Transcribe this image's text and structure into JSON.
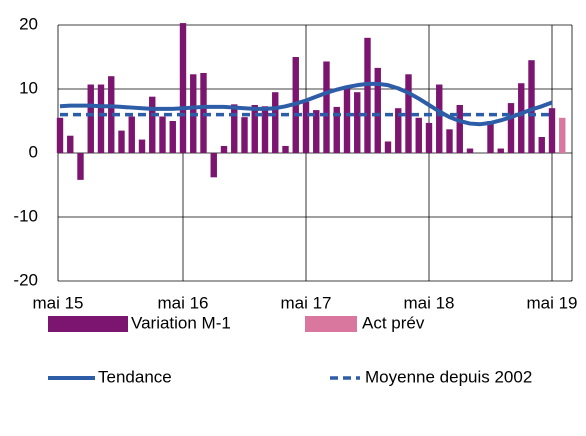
{
  "chart_data": {
    "type": "bar",
    "categories": [
      "mai 15",
      null,
      null,
      null,
      null,
      null,
      null,
      null,
      null,
      null,
      null,
      null,
      "mai 16",
      null,
      null,
      null,
      null,
      null,
      null,
      null,
      null,
      null,
      null,
      null,
      "mai 17",
      null,
      null,
      null,
      null,
      null,
      null,
      null,
      null,
      null,
      null,
      null,
      "mai 18",
      null,
      null,
      null,
      null,
      null,
      null,
      null,
      null,
      null,
      null,
      null,
      "mai 19",
      null
    ],
    "series": [
      {
        "name": "Variation M-1",
        "kind": "bar",
        "color": "#7b1570",
        "values": [
          5.5,
          2.7,
          -4.2,
          10.7,
          10.7,
          12,
          3.5,
          5.7,
          2.1,
          8.8,
          5.7,
          5,
          20.3,
          12.3,
          12.5,
          -3.8,
          1.1,
          7.6,
          5.6,
          7.5,
          7.3,
          9.5,
          1.1,
          15,
          8,
          6.7,
          14.3,
          7.2,
          10.3,
          9.5,
          18,
          13.3,
          1.8,
          7,
          12.3,
          5.5,
          4.7,
          10.7,
          3.7,
          7.5,
          0.7,
          0,
          5,
          0.7,
          7.8,
          10.9,
          14.5,
          2.5,
          7,
          null
        ]
      },
      {
        "name": "Act prév",
        "kind": "bar",
        "color": "#d9779f",
        "values": [
          null,
          null,
          null,
          null,
          null,
          null,
          null,
          null,
          null,
          null,
          null,
          null,
          null,
          null,
          null,
          null,
          null,
          null,
          null,
          null,
          null,
          null,
          null,
          null,
          null,
          null,
          null,
          null,
          null,
          null,
          null,
          null,
          null,
          null,
          null,
          null,
          null,
          null,
          null,
          null,
          null,
          null,
          null,
          null,
          null,
          null,
          null,
          null,
          null,
          5.5
        ]
      },
      {
        "name": "Tendance",
        "kind": "line",
        "color": "#2e5da8",
        "values": [
          7.3,
          7.4,
          7.4,
          7.4,
          7.3,
          7.3,
          7.2,
          7.1,
          7.0,
          6.9,
          6.9,
          6.9,
          7.0,
          7.1,
          7.2,
          7.2,
          7.2,
          7.1,
          7.0,
          6.9,
          6.9,
          7.0,
          7.3,
          7.7,
          8.2,
          8.8,
          9.4,
          9.9,
          10.3,
          10.6,
          10.8,
          10.8,
          10.6,
          10.1,
          9.4,
          8.5,
          7.5,
          6.5,
          5.6,
          5.0,
          4.6,
          4.5,
          4.7,
          5.1,
          5.6,
          6.2,
          6.8,
          7.3,
          7.9,
          null
        ]
      },
      {
        "name": "Moyenne depuis 2002",
        "kind": "dashed",
        "color": "#2e5da8",
        "values": [
          6,
          6,
          6,
          6,
          6,
          6,
          6,
          6,
          6,
          6,
          6,
          6,
          6,
          6,
          6,
          6,
          6,
          6,
          6,
          6,
          6,
          6,
          6,
          6,
          6,
          6,
          6,
          6,
          6,
          6,
          6,
          6,
          6,
          6,
          6,
          6,
          6,
          6,
          6,
          6,
          6,
          6,
          6,
          6,
          6,
          6,
          6,
          6,
          6,
          null
        ]
      }
    ],
    "ylim": [
      -20,
      20
    ],
    "yticks": [
      -20,
      -10,
      0,
      10,
      20
    ],
    "grid": true
  }
}
